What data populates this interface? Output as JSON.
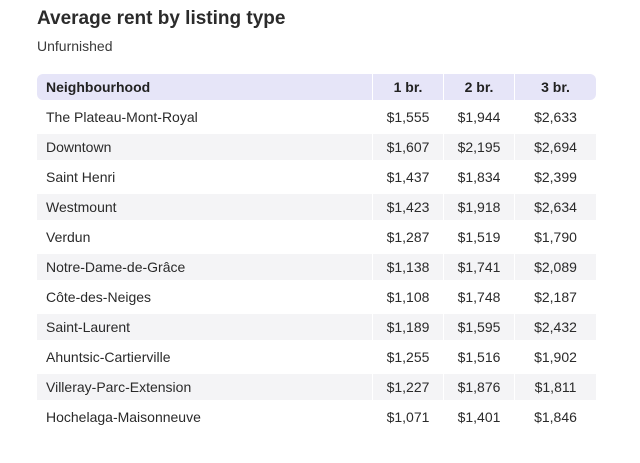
{
  "chart_data": {
    "type": "table",
    "title": "Average rent by listing type",
    "subtitle": "Unfurnished",
    "columns": [
      "Neighbourhood",
      "1 br.",
      "2 br.",
      "3 br."
    ],
    "rows": [
      [
        "The Plateau-Mont-Royal",
        "$1,555",
        "$1,944",
        "$2,633"
      ],
      [
        "Downtown",
        "$1,607",
        "$2,195",
        "$2,694"
      ],
      [
        "Saint Henri",
        "$1,437",
        "$1,834",
        "$2,399"
      ],
      [
        "Westmount",
        "$1,423",
        "$1,918",
        "$2,634"
      ],
      [
        "Verdun",
        "$1,287",
        "$1,519",
        "$1,790"
      ],
      [
        "Notre-Dame-de-Grâce",
        "$1,138",
        "$1,741",
        "$2,089"
      ],
      [
        "Côte-des-Neiges",
        "$1,108",
        "$1,748",
        "$2,187"
      ],
      [
        "Saint-Laurent",
        "$1,189",
        "$1,595",
        "$2,432"
      ],
      [
        "Ahuntsic-Cartierville",
        "$1,255",
        "$1,516",
        "$1,902"
      ],
      [
        "Villeray-Parc-Extension",
        "$1,227",
        "$1,876",
        "$1,811"
      ],
      [
        "Hochelaga-Maisonneuve",
        "$1,071",
        "$1,401",
        "$1,846"
      ]
    ],
    "colors": {
      "header_background": "#e6e5f8",
      "alternate_row_background": "#f4f4f6"
    }
  }
}
